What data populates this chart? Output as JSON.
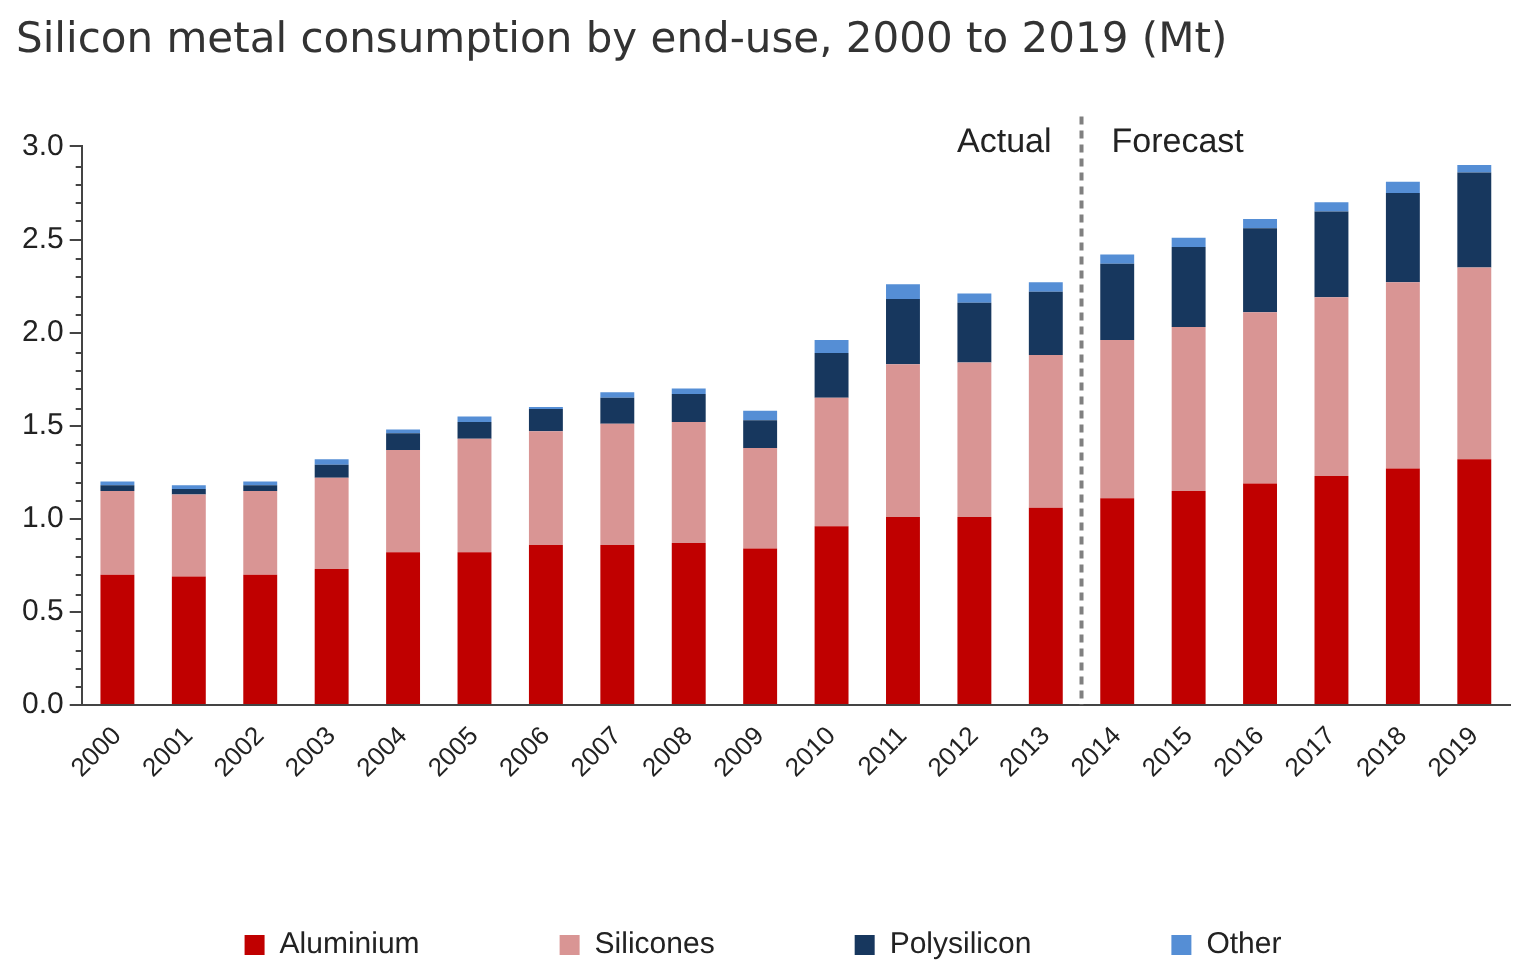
{
  "chart_data": {
    "type": "bar",
    "title": "Silicon metal consumption by end-use, 2000 to 2019 (Mt)",
    "stacked": true,
    "categories": [
      "2000",
      "2001",
      "2002",
      "2003",
      "2004",
      "2005",
      "2006",
      "2007",
      "2008",
      "2009",
      "2010",
      "2011",
      "2012",
      "2013",
      "2014",
      "2015",
      "2016",
      "2017",
      "2018",
      "2019"
    ],
    "series": [
      {
        "name": "Aluminium",
        "color": "#c00000",
        "values": [
          0.7,
          0.69,
          0.7,
          0.73,
          0.82,
          0.82,
          0.86,
          0.86,
          0.87,
          0.84,
          0.96,
          1.01,
          1.01,
          1.06,
          1.11,
          1.15,
          1.19,
          1.23,
          1.27,
          1.32
        ]
      },
      {
        "name": "Silicones",
        "color": "#d99594",
        "values": [
          0.45,
          0.44,
          0.45,
          0.49,
          0.55,
          0.61,
          0.61,
          0.65,
          0.65,
          0.54,
          0.69,
          0.82,
          0.83,
          0.82,
          0.85,
          0.88,
          0.92,
          0.96,
          1.0,
          1.03
        ]
      },
      {
        "name": "Polysilicon",
        "color": "#17375e",
        "values": [
          0.03,
          0.03,
          0.03,
          0.07,
          0.09,
          0.09,
          0.12,
          0.14,
          0.15,
          0.15,
          0.24,
          0.35,
          0.32,
          0.34,
          0.41,
          0.43,
          0.45,
          0.46,
          0.48,
          0.51
        ]
      },
      {
        "name": "Other",
        "color": "#558ed5",
        "values": [
          0.02,
          0.02,
          0.02,
          0.03,
          0.02,
          0.03,
          0.01,
          0.03,
          0.03,
          0.05,
          0.07,
          0.08,
          0.05,
          0.05,
          0.05,
          0.05,
          0.05,
          0.05,
          0.06,
          0.04
        ]
      }
    ],
    "ylim": [
      0,
      3
    ],
    "yticks": [
      {
        "value": 0,
        "label": "0.0"
      },
      0.5,
      {
        "value": 1,
        "label": "1.0"
      },
      1.5,
      {
        "value": 2,
        "label": "2.0"
      },
      2.5,
      {
        "value": 3,
        "label": "3.0"
      }
    ],
    "grid": false,
    "legend": "bottom",
    "annotations": [
      "Actual",
      "Forecast"
    ]
  }
}
